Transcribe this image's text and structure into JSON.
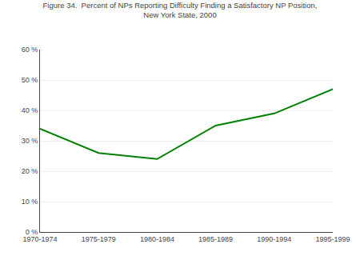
{
  "chart_data": {
    "type": "line",
    "title": "Figure 34.  Percent of NPs Reporting Difficulty Finding a Satisfactory NP Position,",
    "subtitle": "New York State, 2000",
    "categories": [
      "1970-1974",
      "1975-1979",
      "1980-1984",
      "1985-1989",
      "1990-1994",
      "1995-1999"
    ],
    "values": [
      34,
      26,
      24,
      35,
      39,
      47
    ],
    "color": "#008000",
    "ylim": [
      0,
      60
    ],
    "yticks": [
      {
        "value": 0,
        "label": "0 %"
      },
      {
        "value": 10,
        "label": "10 %"
      },
      {
        "value": 20,
        "label": "20 %"
      },
      {
        "value": 30,
        "label": "30 %"
      },
      {
        "value": 40,
        "label": "40 %"
      },
      {
        "value": 50,
        "label": "50 %"
      },
      {
        "value": 60,
        "label": "60 %"
      }
    ],
    "grid": true
  }
}
